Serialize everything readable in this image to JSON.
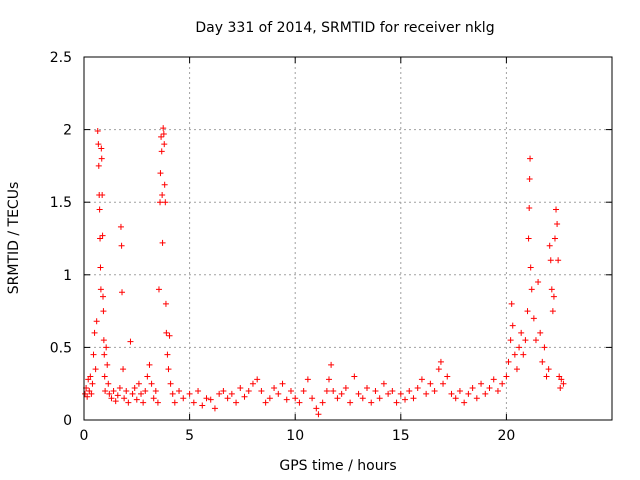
{
  "chart_data": {
    "type": "scatter",
    "title": "Day 331 of 2014, SRMTID for receiver nklg",
    "xlabel": "GPS time / hours",
    "ylabel": "SRMTID / TECUs",
    "xlim": [
      0,
      25
    ],
    "ylim": [
      0,
      2.5
    ],
    "xticks": [
      0,
      5,
      10,
      15,
      20
    ],
    "xtick_labels": [
      "0",
      "5",
      "10",
      "15",
      "20"
    ],
    "yticks": [
      0,
      0.5,
      1,
      1.5,
      2,
      2.5
    ],
    "ytick_labels": [
      "0",
      "0.5",
      "1",
      "1.5",
      "2",
      "2.5"
    ],
    "grid": true,
    "marker": "+",
    "series": [
      {
        "name": "SRMTID nklg",
        "color": "#ff0000",
        "points": [
          [
            0.05,
            0.18
          ],
          [
            0.1,
            0.22
          ],
          [
            0.15,
            0.16
          ],
          [
            0.2,
            0.28
          ],
          [
            0.25,
            0.2
          ],
          [
            0.3,
            0.3
          ],
          [
            0.35,
            0.18
          ],
          [
            0.4,
            0.25
          ],
          [
            0.45,
            0.45
          ],
          [
            0.5,
            0.6
          ],
          [
            0.55,
            0.35
          ],
          [
            0.6,
            0.68
          ],
          [
            0.65,
            1.99
          ],
          [
            0.68,
            1.9
          ],
          [
            0.7,
            1.75
          ],
          [
            0.72,
            1.55
          ],
          [
            0.74,
            1.45
          ],
          [
            0.76,
            1.25
          ],
          [
            0.78,
            1.05
          ],
          [
            0.8,
            0.9
          ],
          [
            0.82,
            1.87
          ],
          [
            0.84,
            1.8
          ],
          [
            0.86,
            1.55
          ],
          [
            0.88,
            1.27
          ],
          [
            0.9,
            0.85
          ],
          [
            0.92,
            0.75
          ],
          [
            0.94,
            0.55
          ],
          [
            0.96,
            0.45
          ],
          [
            0.98,
            0.3
          ],
          [
            1.0,
            0.2
          ],
          [
            1.05,
            0.5
          ],
          [
            1.1,
            0.38
          ],
          [
            1.15,
            0.25
          ],
          [
            1.2,
            0.18
          ],
          [
            1.3,
            0.15
          ],
          [
            1.4,
            0.2
          ],
          [
            1.5,
            0.13
          ],
          [
            1.6,
            0.17
          ],
          [
            1.7,
            0.22
          ],
          [
            1.75,
            1.33
          ],
          [
            1.78,
            1.2
          ],
          [
            1.8,
            0.88
          ],
          [
            1.85,
            0.35
          ],
          [
            1.9,
            0.15
          ],
          [
            2.0,
            0.2
          ],
          [
            2.1,
            0.12
          ],
          [
            2.2,
            0.54
          ],
          [
            2.3,
            0.18
          ],
          [
            2.4,
            0.22
          ],
          [
            2.5,
            0.14
          ],
          [
            2.6,
            0.25
          ],
          [
            2.7,
            0.18
          ],
          [
            2.8,
            0.12
          ],
          [
            2.9,
            0.2
          ],
          [
            3.0,
            0.3
          ],
          [
            3.1,
            0.38
          ],
          [
            3.2,
            0.25
          ],
          [
            3.3,
            0.15
          ],
          [
            3.4,
            0.2
          ],
          [
            3.5,
            0.12
          ],
          [
            3.55,
            0.9
          ],
          [
            3.6,
            1.5
          ],
          [
            3.62,
            1.7
          ],
          [
            3.65,
            1.95
          ],
          [
            3.68,
            1.85
          ],
          [
            3.7,
            1.55
          ],
          [
            3.72,
            1.22
          ],
          [
            3.75,
            2.01
          ],
          [
            3.78,
            1.97
          ],
          [
            3.8,
            1.9
          ],
          [
            3.82,
            1.62
          ],
          [
            3.85,
            1.5
          ],
          [
            3.88,
            0.8
          ],
          [
            3.9,
            0.6
          ],
          [
            3.95,
            0.45
          ],
          [
            4.0,
            0.35
          ],
          [
            4.05,
            0.58
          ],
          [
            4.1,
            0.25
          ],
          [
            4.2,
            0.18
          ],
          [
            4.3,
            0.12
          ],
          [
            4.5,
            0.2
          ],
          [
            4.7,
            0.15
          ],
          [
            5.0,
            0.18
          ],
          [
            5.2,
            0.12
          ],
          [
            5.4,
            0.2
          ],
          [
            5.6,
            0.1
          ],
          [
            5.8,
            0.15
          ],
          [
            6.0,
            0.14
          ],
          [
            6.2,
            0.08
          ],
          [
            6.4,
            0.18
          ],
          [
            6.6,
            0.2
          ],
          [
            6.8,
            0.15
          ],
          [
            7.0,
            0.18
          ],
          [
            7.2,
            0.12
          ],
          [
            7.4,
            0.22
          ],
          [
            7.6,
            0.16
          ],
          [
            7.8,
            0.2
          ],
          [
            8.0,
            0.25
          ],
          [
            8.2,
            0.28
          ],
          [
            8.4,
            0.2
          ],
          [
            8.6,
            0.12
          ],
          [
            8.8,
            0.15
          ],
          [
            9.0,
            0.22
          ],
          [
            9.2,
            0.18
          ],
          [
            9.4,
            0.25
          ],
          [
            9.6,
            0.14
          ],
          [
            9.8,
            0.2
          ],
          [
            10.0,
            0.15
          ],
          [
            10.2,
            0.12
          ],
          [
            10.4,
            0.2
          ],
          [
            10.6,
            0.28
          ],
          [
            10.8,
            0.15
          ],
          [
            11.0,
            0.08
          ],
          [
            11.1,
            0.04
          ],
          [
            11.3,
            0.12
          ],
          [
            11.5,
            0.2
          ],
          [
            11.6,
            0.28
          ],
          [
            11.7,
            0.38
          ],
          [
            11.8,
            0.2
          ],
          [
            12.0,
            0.15
          ],
          [
            12.2,
            0.18
          ],
          [
            12.4,
            0.22
          ],
          [
            12.6,
            0.12
          ],
          [
            12.8,
            0.3
          ],
          [
            13.0,
            0.18
          ],
          [
            13.2,
            0.15
          ],
          [
            13.4,
            0.22
          ],
          [
            13.6,
            0.12
          ],
          [
            13.8,
            0.2
          ],
          [
            14.0,
            0.15
          ],
          [
            14.2,
            0.25
          ],
          [
            14.4,
            0.18
          ],
          [
            14.6,
            0.2
          ],
          [
            14.8,
            0.12
          ],
          [
            15.0,
            0.18
          ],
          [
            15.2,
            0.14
          ],
          [
            15.4,
            0.2
          ],
          [
            15.6,
            0.15
          ],
          [
            15.8,
            0.22
          ],
          [
            16.0,
            0.28
          ],
          [
            16.2,
            0.18
          ],
          [
            16.4,
            0.25
          ],
          [
            16.6,
            0.2
          ],
          [
            16.8,
            0.35
          ],
          [
            16.9,
            0.4
          ],
          [
            17.0,
            0.25
          ],
          [
            17.2,
            0.3
          ],
          [
            17.4,
            0.18
          ],
          [
            17.6,
            0.15
          ],
          [
            17.8,
            0.2
          ],
          [
            18.0,
            0.12
          ],
          [
            18.2,
            0.18
          ],
          [
            18.4,
            0.22
          ],
          [
            18.6,
            0.15
          ],
          [
            18.8,
            0.25
          ],
          [
            19.0,
            0.18
          ],
          [
            19.2,
            0.22
          ],
          [
            19.4,
            0.28
          ],
          [
            19.6,
            0.2
          ],
          [
            19.8,
            0.25
          ],
          [
            20.0,
            0.3
          ],
          [
            20.1,
            0.4
          ],
          [
            20.2,
            0.55
          ],
          [
            20.25,
            0.8
          ],
          [
            20.3,
            0.65
          ],
          [
            20.4,
            0.45
          ],
          [
            20.5,
            0.35
          ],
          [
            20.6,
            0.5
          ],
          [
            20.7,
            0.6
          ],
          [
            20.8,
            0.45
          ],
          [
            20.9,
            0.55
          ],
          [
            21.0,
            0.75
          ],
          [
            21.05,
            1.25
          ],
          [
            21.08,
            1.46
          ],
          [
            21.1,
            1.66
          ],
          [
            21.12,
            1.8
          ],
          [
            21.15,
            1.05
          ],
          [
            21.2,
            0.9
          ],
          [
            21.3,
            0.7
          ],
          [
            21.4,
            0.55
          ],
          [
            21.5,
            0.95
          ],
          [
            21.6,
            0.6
          ],
          [
            21.7,
            0.4
          ],
          [
            21.8,
            0.5
          ],
          [
            21.9,
            0.3
          ],
          [
            22.0,
            0.35
          ],
          [
            22.05,
            1.2
          ],
          [
            22.1,
            1.1
          ],
          [
            22.15,
            0.9
          ],
          [
            22.2,
            0.75
          ],
          [
            22.25,
            0.85
          ],
          [
            22.3,
            1.25
          ],
          [
            22.35,
            1.45
          ],
          [
            22.4,
            1.35
          ],
          [
            22.45,
            1.1
          ],
          [
            22.5,
            0.3
          ],
          [
            22.55,
            0.22
          ],
          [
            22.6,
            0.28
          ],
          [
            22.7,
            0.25
          ]
        ]
      }
    ]
  }
}
